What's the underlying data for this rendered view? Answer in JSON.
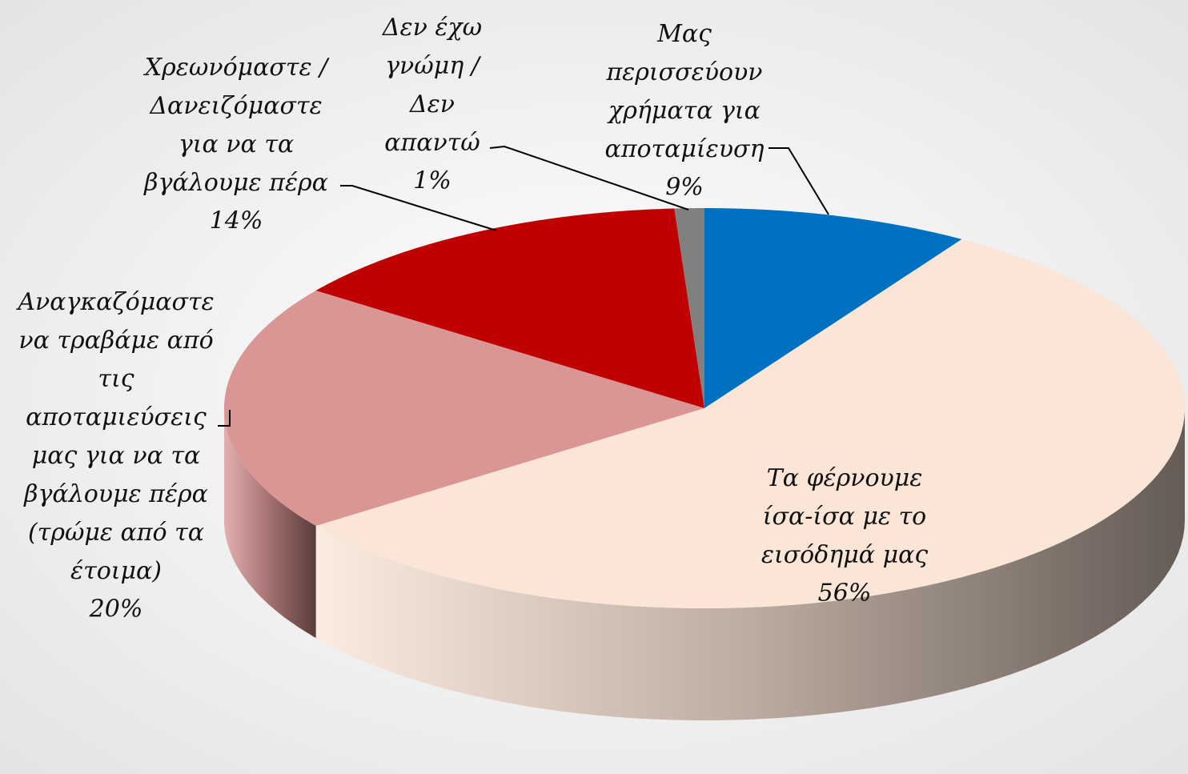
{
  "chart_data": {
    "type": "pie",
    "three_d": true,
    "categories": [
      "Μας περισσεύουν χρήματα για αποταμίευση",
      "Τα φέρνουμε ίσα-ίσα με το εισόδημά μας",
      "Αναγκαζόμαστε να τραβάμε από τις αποταμιεύσεις μας για να τα βγάλουμε πέρα (τρώμε από τα έτοιμα)",
      "Χρεωνόμαστε / Δανειζόμαστε για να τα βγάλουμε πέρα",
      "Δεν έχω γνώμη / Δεν απαντώ"
    ],
    "values": [
      9,
      56,
      20,
      14,
      1
    ],
    "value_labels": [
      "9%",
      "56%",
      "20%",
      "14%",
      "1%"
    ],
    "colors": [
      "#0070c0",
      "#fbe5d6",
      "#d99694",
      "#c00000",
      "#808080"
    ]
  }
}
